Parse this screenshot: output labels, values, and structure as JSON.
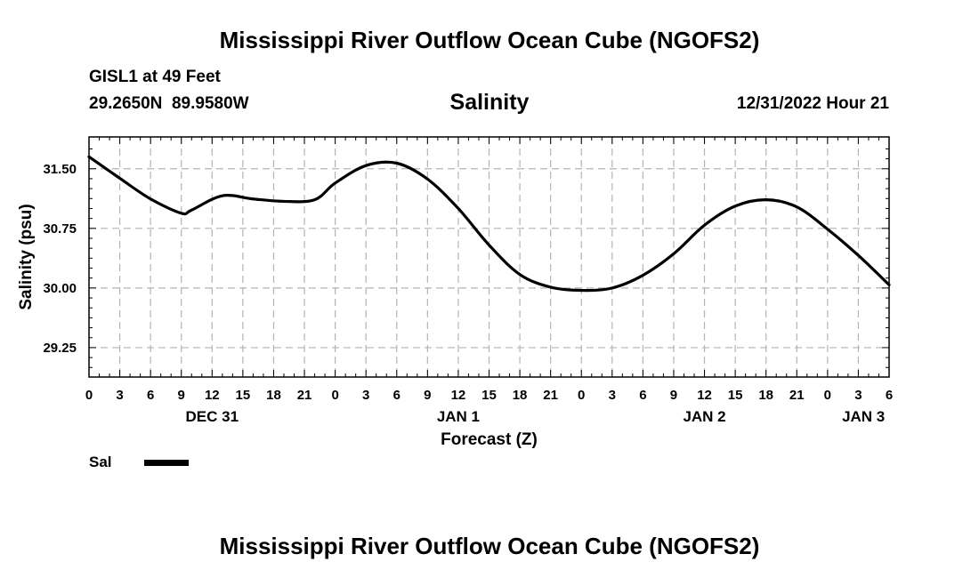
{
  "header": {
    "title": "Mississippi River Outflow Ocean Cube (NGOFS2)",
    "station": "GISL1 at 49 Feet",
    "lat": "29.2650N",
    "lon": "89.9580W",
    "datetime": "12/31/2022 Hour 21"
  },
  "footer": {
    "title": "Mississippi River Outflow Ocean Cube (NGOFS2)"
  },
  "legend": {
    "label": "Sal",
    "color": "#000000"
  },
  "chart_data": {
    "type": "line",
    "title": "Salinity",
    "xlabel": "Forecast (Z)",
    "ylabel": "Salinity (psu)",
    "xlim": [
      0,
      78
    ],
    "ylim": [
      28.88,
      31.9
    ],
    "grid": true,
    "x_tick_step_hours": 3,
    "x_tick_labels": [
      "0",
      "3",
      "6",
      "9",
      "12",
      "15",
      "18",
      "21",
      "0",
      "3",
      "6",
      "9",
      "12",
      "15",
      "18",
      "21",
      "0",
      "3",
      "6",
      "9",
      "12",
      "15",
      "18",
      "21",
      "0",
      "3",
      "6"
    ],
    "day_labels": [
      {
        "label": "DEC 31",
        "x": 12
      },
      {
        "label": "JAN 1",
        "x": 36
      },
      {
        "label": "JAN 2",
        "x": 60
      },
      {
        "label": "JAN 3",
        "x": 75.5
      }
    ],
    "y_ticks": [
      29.25,
      30.0,
      30.75,
      31.5
    ],
    "y_tick_labels": [
      "29.25",
      "30.00",
      "30.75",
      "31.50"
    ],
    "series": [
      {
        "name": "Sal",
        "x": [
          0,
          3,
          6,
          9,
          10,
          13,
          16,
          19,
          22,
          24,
          27,
          30,
          33,
          36,
          39,
          42,
          45,
          48,
          51,
          54,
          57,
          60,
          63,
          66,
          69,
          72,
          75,
          78
        ],
        "values": [
          31.65,
          31.38,
          31.12,
          30.94,
          30.98,
          31.16,
          31.12,
          31.09,
          31.11,
          31.32,
          31.54,
          31.57,
          31.37,
          31.0,
          30.54,
          30.17,
          30.01,
          29.97,
          30.0,
          30.16,
          30.43,
          30.79,
          31.03,
          31.11,
          31.02,
          30.74,
          30.41,
          30.04
        ]
      }
    ]
  }
}
